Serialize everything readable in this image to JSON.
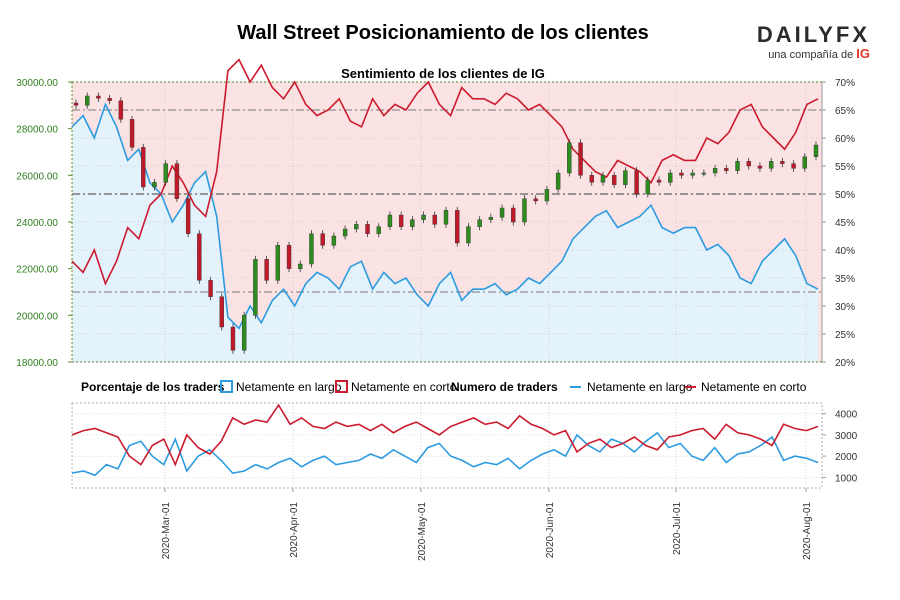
{
  "header": {
    "title": "Wall Street Posicionamiento de los clientes",
    "logo_word": "DAILYFX",
    "logo_sub": "una compañía de",
    "logo_ig": "IG"
  },
  "colors": {
    "long": "#2d9be0",
    "short": "#cc1a2e",
    "bull": "#2e8b1e",
    "bear": "#c01a2a",
    "short_bg": "#fbe3e3",
    "long_bg": "#e4f2fb"
  },
  "chart_data": [
    {
      "type": "line",
      "title": "Sentimiento de los clientes de IG",
      "y_left_ticks": [
        "30000.00",
        "28000.00",
        "26000.00",
        "24000.00",
        "22000.00",
        "20000.00",
        "18000.00"
      ],
      "y_left_range": [
        18000,
        30000
      ],
      "y_right_ticks": [
        "70%",
        "65%",
        "60%",
        "55%",
        "50%",
        "45%",
        "40%",
        "35%",
        "30%",
        "25%",
        "20%"
      ],
      "y_right_range": [
        20,
        70
      ],
      "x_ticks": [
        "2020-Mar-01",
        "2020-Apr-01",
        "2020-May-01",
        "2020-Jun-01",
        "2020-Jul-01",
        "2020-Aug-01"
      ],
      "reference_lines_pct": [
        65,
        50,
        32.5
      ],
      "price_close": [
        29000,
        29400,
        29300,
        29200,
        28400,
        27200,
        25500,
        25700,
        26500,
        25000,
        23500,
        21500,
        20800,
        19500,
        18500,
        20000,
        22400,
        21500,
        23000,
        22000,
        22200,
        23500,
        23000,
        23400,
        23700,
        23900,
        23500,
        23800,
        24300,
        23800,
        24100,
        24300,
        23900,
        24500,
        23100,
        23800,
        24100,
        24200,
        24600,
        24000,
        25000,
        24900,
        25400,
        26100,
        27400,
        26000,
        25700,
        26000,
        25600,
        26200,
        25200,
        25800,
        25700,
        26100,
        26000,
        26100,
        26100,
        26300,
        26200,
        26600,
        26400,
        26300,
        26600,
        26500,
        26300,
        26800,
        27300
      ],
      "long_pct": [
        62,
        64,
        60,
        66,
        62,
        56,
        58,
        52,
        50,
        45,
        48,
        52,
        54,
        46,
        28,
        26,
        30,
        27,
        31,
        33,
        30,
        34,
        36,
        35,
        33,
        37,
        38,
        33,
        36,
        34,
        35,
        32,
        30,
        34,
        36,
        31,
        33,
        33,
        34,
        32,
        33,
        35,
        34,
        36,
        38,
        42,
        44,
        46,
        47,
        44,
        45,
        46,
        48,
        44,
        43,
        44,
        44,
        40,
        41,
        39,
        35,
        34,
        38,
        40,
        42,
        39,
        34,
        33
      ],
      "short_pct": [
        38,
        36,
        40,
        34,
        38,
        44,
        42,
        48,
        50,
        55,
        52,
        48,
        46,
        54,
        72,
        74,
        70,
        73,
        69,
        67,
        70,
        66,
        64,
        65,
        67,
        63,
        62,
        67,
        64,
        66,
        65,
        68,
        70,
        66,
        64,
        69,
        67,
        67,
        66,
        68,
        67,
        65,
        66,
        64,
        62,
        58,
        56,
        54,
        53,
        56,
        55,
        54,
        52,
        56,
        57,
        56,
        56,
        60,
        59,
        61,
        65,
        66,
        62,
        60,
        58,
        61,
        66,
        67
      ]
    },
    {
      "type": "line",
      "title": "Numero de traders",
      "y_ticks": [
        "4000",
        "3000",
        "2000",
        "1000"
      ],
      "y_range": [
        500,
        4500
      ],
      "long_count": [
        1200,
        1300,
        1100,
        1600,
        1400,
        2500,
        2700,
        2000,
        1600,
        2800,
        1300,
        2000,
        2300,
        1800,
        1200,
        1300,
        1600,
        1400,
        1700,
        1900,
        1500,
        1800,
        2000,
        1600,
        1700,
        1800,
        2100,
        1900,
        2300,
        2000,
        1700,
        2400,
        2600,
        2000,
        1800,
        1500,
        1700,
        1600,
        1900,
        1400,
        1800,
        2100,
        2300,
        2000,
        3000,
        2500,
        2200,
        2800,
        2600,
        2200,
        2700,
        3100,
        2400,
        2600,
        2000,
        1800,
        2400,
        1700,
        2100,
        2200,
        2500,
        2900,
        1800,
        2000,
        1900,
        1700
      ],
      "short_count": [
        3000,
        3200,
        3300,
        3100,
        2900,
        2000,
        1600,
        2500,
        2800,
        1600,
        3000,
        2400,
        2100,
        2700,
        3800,
        3500,
        3700,
        3600,
        4400,
        3500,
        3800,
        3400,
        3300,
        3600,
        3400,
        3500,
        3200,
        3500,
        3100,
        3400,
        3600,
        3300,
        3000,
        3400,
        3600,
        3800,
        3500,
        3600,
        3300,
        3900,
        3500,
        3300,
        3000,
        3200,
        2200,
        2600,
        2800,
        2400,
        2600,
        2900,
        2500,
        2300,
        2900,
        3000,
        3200,
        3300,
        2800,
        3500,
        3100,
        3000,
        2800,
        2500,
        3500,
        3300,
        3200,
        3400
      ]
    }
  ],
  "legend": {
    "pct_title": "Porcentaje de los traders",
    "pct_long": "Netamente en largo",
    "pct_short": "Netamente en corto",
    "count_title": "Numero de traders",
    "count_long": "Netamente en largo",
    "count_short": "Netamente en corto"
  }
}
